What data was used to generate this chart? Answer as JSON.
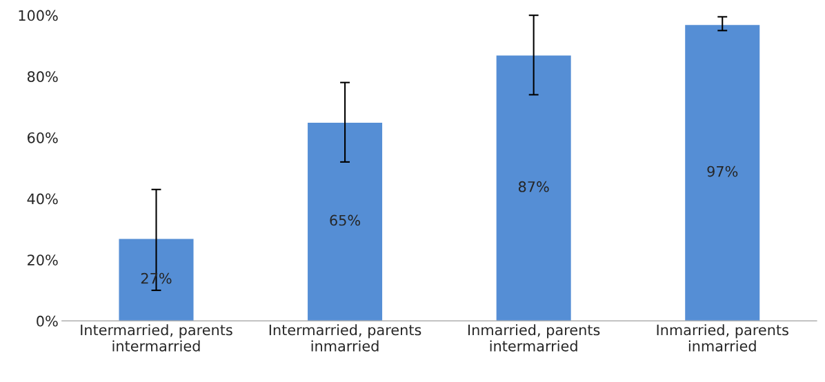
{
  "chart_data": {
    "type": "bar",
    "categories": [
      "Intermarried, parents\nintermarried",
      "Intermarried, parents\ninmarried",
      "Inmarried, parents\nintermarried",
      "Inmarried, parents\ninmarried"
    ],
    "values": [
      27,
      65,
      87,
      97
    ],
    "value_labels": [
      "27%",
      "65%",
      "87%",
      "97%"
    ],
    "errors": [
      [
        10,
        43
      ],
      [
        52,
        78
      ],
      [
        74,
        100
      ],
      [
        95,
        99.5
      ]
    ],
    "color": "#558ed5",
    "ylim": [
      0,
      100
    ],
    "yticks": [
      {
        "value": 0,
        "label": "0%"
      },
      {
        "value": 20,
        "label": "20%"
      },
      {
        "value": 40,
        "label": "40%"
      },
      {
        "value": 60,
        "label": "60%"
      },
      {
        "value": 80,
        "label": "80%"
      },
      {
        "value": 100,
        "label": "100%"
      }
    ],
    "grid": false,
    "legend": false
  }
}
